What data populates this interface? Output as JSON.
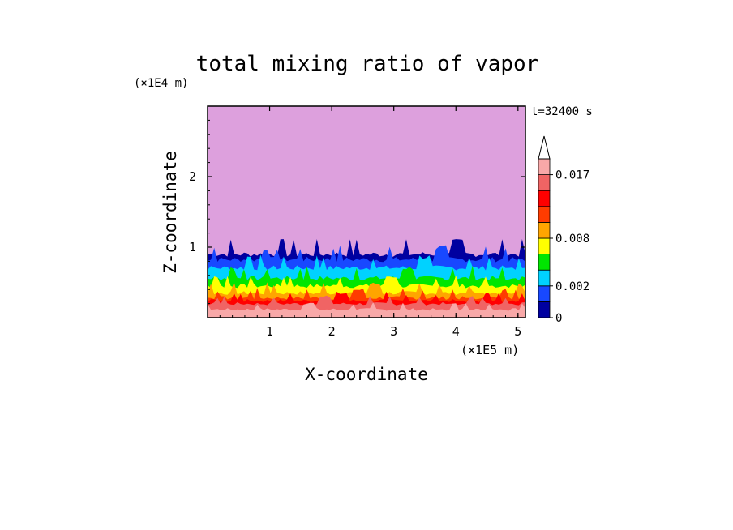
{
  "chart_data": {
    "type": "heatmap",
    "title": "total mixing ratio of vapor",
    "xlabel": "X-coordinate",
    "ylabel": "Z-coordinate",
    "x_unit": "(×1E5 m)",
    "y_unit": "(×1E4 m)",
    "time_label": "t=32400 s",
    "xlim": [
      0.0,
      5.12
    ],
    "ylim": [
      0.0,
      3.0
    ],
    "x_ticks": [
      "1",
      "2",
      "3",
      "4",
      "5"
    ],
    "y_ticks": [
      "1",
      "2"
    ],
    "colorbar": {
      "labels": [
        "0.017",
        "0.008",
        "0.002",
        "0"
      ],
      "label_values": [
        0.017,
        0.008,
        0.002,
        0
      ],
      "levels": [
        0,
        0.001,
        0.002,
        0.004,
        0.006,
        0.008,
        0.01,
        0.012,
        0.014,
        0.017,
        0.02
      ],
      "colors": [
        "#0000a0",
        "#1848ff",
        "#00d2ff",
        "#00e600",
        "#ffff00",
        "#ffa500",
        "#ff3c00",
        "#ff0000",
        "#f06464",
        "#f8a8a8"
      ],
      "extend": "max"
    },
    "background_color": "#dda0dd",
    "field_profile": [
      {
        "z": 0.05,
        "value": 0.019
      },
      {
        "z": 0.15,
        "value": 0.016
      },
      {
        "z": 0.22,
        "value": 0.013
      },
      {
        "z": 0.3,
        "value": 0.009
      },
      {
        "z": 0.4,
        "value": 0.007
      },
      {
        "z": 0.5,
        "value": 0.005
      },
      {
        "z": 0.62,
        "value": 0.003
      },
      {
        "z": 0.75,
        "value": 0.0015
      },
      {
        "z": 0.9,
        "value": 0.0005
      }
    ]
  }
}
